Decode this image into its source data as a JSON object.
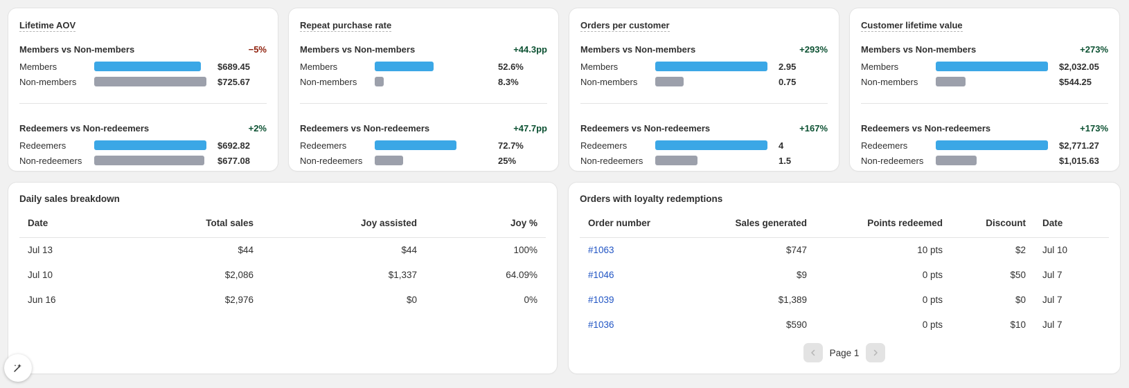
{
  "metrics": [
    {
      "title": "Lifetime AOV",
      "sections": [
        {
          "heading": "Members vs Non-members",
          "delta": "−5%",
          "delta_dir": "neg",
          "rows": [
            {
              "label": "Members",
              "value": "$689.45",
              "fill": 0.95
            },
            {
              "label": "Non-members",
              "value": "$725.67",
              "fill": 1.0
            }
          ]
        },
        {
          "heading": "Redeemers vs Non-redeemers",
          "delta": "+2%",
          "delta_dir": "pos",
          "rows": [
            {
              "label": "Redeemers",
              "value": "$692.82",
              "fill": 1.0
            },
            {
              "label": "Non-redeemers",
              "value": "$677.08",
              "fill": 0.98
            }
          ]
        }
      ]
    },
    {
      "title": "Repeat purchase rate",
      "sections": [
        {
          "heading": "Members vs Non-members",
          "delta": "+44.3pp",
          "delta_dir": "pos",
          "rows": [
            {
              "label": "Members",
              "value": "52.6%",
              "fill": 0.526
            },
            {
              "label": "Non-members",
              "value": "8.3%",
              "fill": 0.083
            }
          ]
        },
        {
          "heading": "Redeemers vs Non-redeemers",
          "delta": "+47.7pp",
          "delta_dir": "pos",
          "rows": [
            {
              "label": "Redeemers",
              "value": "72.7%",
              "fill": 0.727
            },
            {
              "label": "Non-redeemers",
              "value": "25%",
              "fill": 0.25
            }
          ]
        }
      ]
    },
    {
      "title": "Orders per customer",
      "sections": [
        {
          "heading": "Members vs Non-members",
          "delta": "+293%",
          "delta_dir": "pos",
          "rows": [
            {
              "label": "Members",
              "value": "2.95",
              "fill": 1.0
            },
            {
              "label": "Non-members",
              "value": "0.75",
              "fill": 0.254
            }
          ]
        },
        {
          "heading": "Redeemers vs Non-redeemers",
          "delta": "+167%",
          "delta_dir": "pos",
          "rows": [
            {
              "label": "Redeemers",
              "value": "4",
              "fill": 1.0
            },
            {
              "label": "Non-redeemers",
              "value": "1.5",
              "fill": 0.375
            }
          ]
        }
      ]
    },
    {
      "title": "Customer lifetime value",
      "sections": [
        {
          "heading": "Members vs Non-members",
          "delta": "+273%",
          "delta_dir": "pos",
          "rows": [
            {
              "label": "Members",
              "value": "$2,032.05",
              "fill": 1.0
            },
            {
              "label": "Non-members",
              "value": "$544.25",
              "fill": 0.268
            }
          ]
        },
        {
          "heading": "Redeemers vs Non-redeemers",
          "delta": "+173%",
          "delta_dir": "pos",
          "rows": [
            {
              "label": "Redeemers",
              "value": "$2,771.27",
              "fill": 1.0
            },
            {
              "label": "Non-redeemers",
              "value": "$1,015.63",
              "fill": 0.366
            }
          ]
        }
      ]
    }
  ],
  "daily_sales": {
    "title": "Daily sales breakdown",
    "columns": [
      "Date",
      "Total sales",
      "Joy assisted",
      "Joy %"
    ],
    "rows": [
      [
        "Jul 13",
        "$44",
        "$44",
        "100%"
      ],
      [
        "Jul 10",
        "$2,086",
        "$1,337",
        "64.09%"
      ],
      [
        "Jun 16",
        "$2,976",
        "$0",
        "0%"
      ]
    ]
  },
  "orders": {
    "title": "Orders with loyalty redemptions",
    "columns": [
      "Order number",
      "Sales generated",
      "Points redeemed",
      "Discount",
      "Date"
    ],
    "rows": [
      [
        "#1063",
        "$747",
        "10 pts",
        "$2",
        "Jul 10"
      ],
      [
        "#1046",
        "$9",
        "0 pts",
        "$50",
        "Jul 7"
      ],
      [
        "#1039",
        "$1,389",
        "0 pts",
        "$0",
        "Jul 7"
      ],
      [
        "#1036",
        "$590",
        "0 pts",
        "$10",
        "Jul 7"
      ]
    ],
    "page_label": "Page 1",
    "prev_icon": "chevron-left-icon",
    "next_icon": "chevron-right-icon"
  },
  "fab_icon": "sparkle-magic-icon",
  "colors": {
    "bar_primary": "#3ba7e6",
    "bar_secondary": "#9ca0ab",
    "delta_positive": "#0c5132",
    "delta_negative": "#8e1f0b",
    "link": "#2155c4"
  }
}
